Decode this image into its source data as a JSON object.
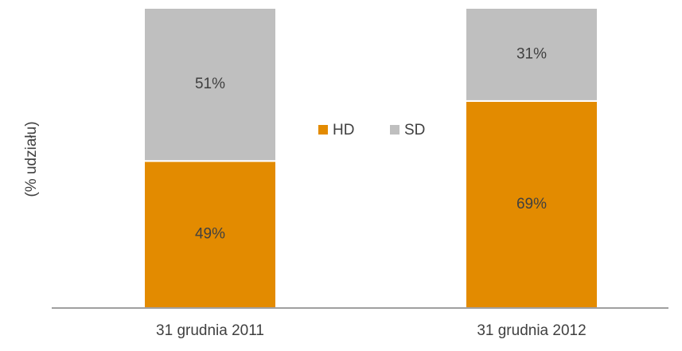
{
  "chart_data": {
    "type": "stacked_bar",
    "y_label": "(% udziału)",
    "categories": [
      "31 grudnia 2011",
      "31 grudnia 2012"
    ],
    "series": [
      {
        "name": "HD",
        "color": "#e38b00",
        "values": [
          49,
          69
        ],
        "value_labels": [
          "49%",
          "69%"
        ]
      },
      {
        "name": "SD",
        "color": "#bfbfbf",
        "values": [
          51,
          31
        ],
        "value_labels": [
          "51%",
          "31%"
        ]
      }
    ],
    "ylim": [
      0,
      100
    ],
    "legend": "center"
  }
}
